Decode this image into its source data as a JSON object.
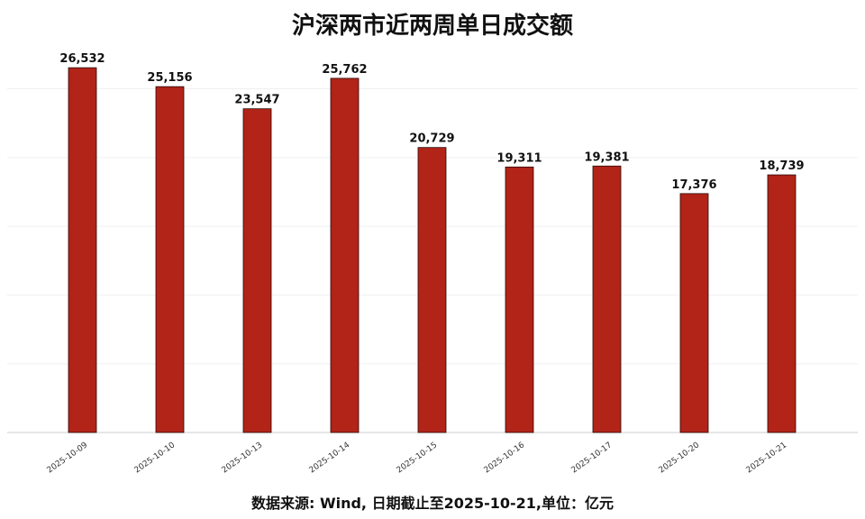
{
  "chart_data": {
    "type": "bar",
    "title": "沪深两市近两周单日成交额",
    "footer": "数据来源: Wind, 日期截止至2025-10-21,单位：亿元",
    "categories": [
      "2025-10-09",
      "2025-10-10",
      "2025-10-13",
      "2025-10-14",
      "2025-10-15",
      "2025-10-16",
      "2025-10-17",
      "2025-10-20",
      "2025-10-21"
    ],
    "values": [
      26532,
      25156,
      23547,
      25762,
      20729,
      19311,
      19381,
      17376,
      18739
    ],
    "value_labels": [
      "26,532",
      "25,156",
      "23,547",
      "25,762",
      "20,729",
      "19,311",
      "19,381",
      "17,376",
      "18,739"
    ],
    "ylim": [
      0,
      27000
    ],
    "grid": true,
    "bar_color": "#b22318",
    "bar_edge_color": "#2a0a08"
  }
}
